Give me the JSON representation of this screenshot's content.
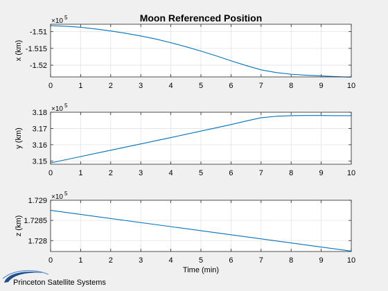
{
  "figure": {
    "title": "Moon Referenced Position",
    "footer_label": "Princeton Satellite Systems",
    "colors": {
      "background": "#f0f0f0",
      "axes_bg": "#ffffff",
      "line": "#0072bd",
      "grid": "#e3e3e3",
      "axis": "#262626",
      "logo": "#1f4e8c"
    }
  },
  "chart_data": [
    {
      "type": "line",
      "title": "Moon Referenced Position",
      "xlabel": "",
      "ylabel": "x (km)",
      "exponent_label": "×10",
      "exponent_power": "5",
      "xlim": [
        0,
        10
      ],
      "ylim": [
        -1.5235,
        -1.5078
      ],
      "xticks": [
        "0",
        "1",
        "2",
        "3",
        "4",
        "5",
        "6",
        "7",
        "8",
        "9",
        "10"
      ],
      "yticks": [
        {
          "value": -1.51,
          "label": "-1.51"
        },
        {
          "value": -1.515,
          "label": "-1.515"
        },
        {
          "value": -1.52,
          "label": "-1.52"
        }
      ],
      "grid": true,
      "series": [
        {
          "x": [
            0,
            0.5,
            1,
            1.5,
            2,
            2.5,
            3,
            3.5,
            4,
            4.5,
            5,
            5.5,
            6,
            6.5,
            7,
            7.5,
            8,
            8.5,
            9,
            9.5,
            10
          ],
          "y": [
            -1.5082,
            -1.5084,
            -1.5087,
            -1.5092,
            -1.5098,
            -1.5105,
            -1.5113,
            -1.5122,
            -1.5133,
            -1.5145,
            -1.5158,
            -1.5172,
            -1.5187,
            -1.5201,
            -1.5214,
            -1.5222,
            -1.5227,
            -1.523,
            -1.5232,
            -1.5234,
            -1.5236
          ]
        }
      ]
    },
    {
      "type": "line",
      "xlabel": "",
      "ylabel": "y (km)",
      "exponent_label": "×10",
      "exponent_power": "5",
      "xlim": [
        0,
        10
      ],
      "ylim": [
        3.148,
        3.18
      ],
      "xticks": [
        "0",
        "1",
        "2",
        "3",
        "4",
        "5",
        "6",
        "7",
        "8",
        "9",
        "10"
      ],
      "yticks": [
        {
          "value": 3.15,
          "label": "3.15"
        },
        {
          "value": 3.16,
          "label": "3.16"
        },
        {
          "value": 3.17,
          "label": "3.17"
        },
        {
          "value": 3.18,
          "label": "3.18"
        }
      ],
      "grid": true,
      "series": [
        {
          "x": [
            0,
            1,
            2,
            3,
            4,
            5,
            6,
            6.5,
            7,
            7.5,
            8,
            8.5,
            9,
            9.5,
            10
          ],
          "y": [
            3.1488,
            3.1527,
            3.1566,
            3.1605,
            3.1644,
            3.1684,
            3.1724,
            3.1746,
            3.1766,
            3.1775,
            3.1779,
            3.178,
            3.178,
            3.1779,
            3.1779
          ]
        }
      ]
    },
    {
      "type": "line",
      "xlabel": "Time (min)",
      "ylabel": "z (km)",
      "exponent_label": "×10",
      "exponent_power": "5",
      "xlim": [
        0,
        10
      ],
      "ylim": [
        1.72773,
        1.729
      ],
      "xticks": [
        "0",
        "1",
        "2",
        "3",
        "4",
        "5",
        "6",
        "7",
        "8",
        "9",
        "10"
      ],
      "yticks": [
        {
          "value": 1.728,
          "label": "1.728"
        },
        {
          "value": 1.7285,
          "label": "1.7285"
        },
        {
          "value": 1.729,
          "label": "1.729"
        }
      ],
      "grid": true,
      "series": [
        {
          "x": [
            0,
            10
          ],
          "y": [
            1.72875,
            1.72774
          ]
        }
      ]
    }
  ]
}
